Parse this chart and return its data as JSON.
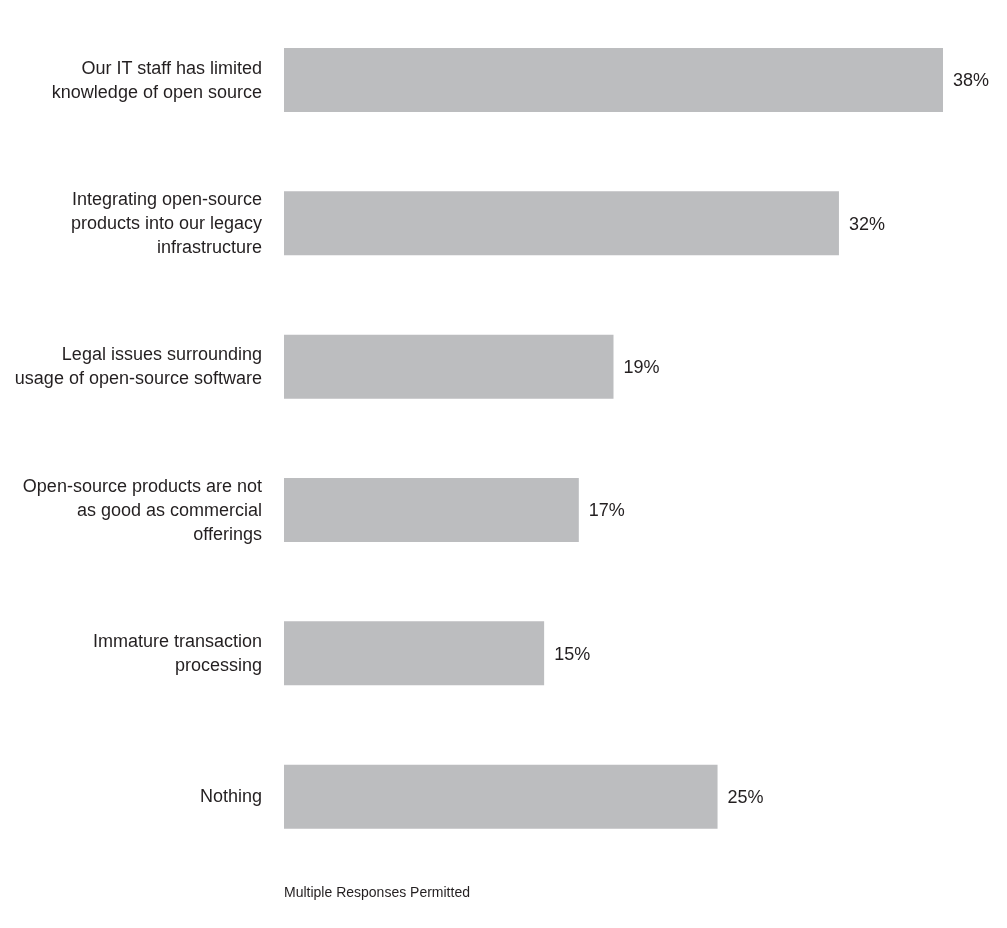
{
  "chart_data": {
    "type": "bar",
    "orientation": "horizontal",
    "categories": [
      "Our IT staff has limited knowledge of open source",
      "Integrating open-source products into our legacy infrastructure",
      "Legal issues surrounding usage of open-source software",
      "Open-source products are not as good as commercial offerings",
      "Immature transaction processing",
      "Nothing"
    ],
    "values": [
      38,
      32,
      19,
      17,
      15,
      25
    ],
    "value_labels": [
      "38%",
      "32%",
      "19%",
      "17%",
      "15%",
      "25%"
    ],
    "color": "#bcbdbf",
    "annotations": [
      "Multiple Responses Permitted"
    ]
  }
}
